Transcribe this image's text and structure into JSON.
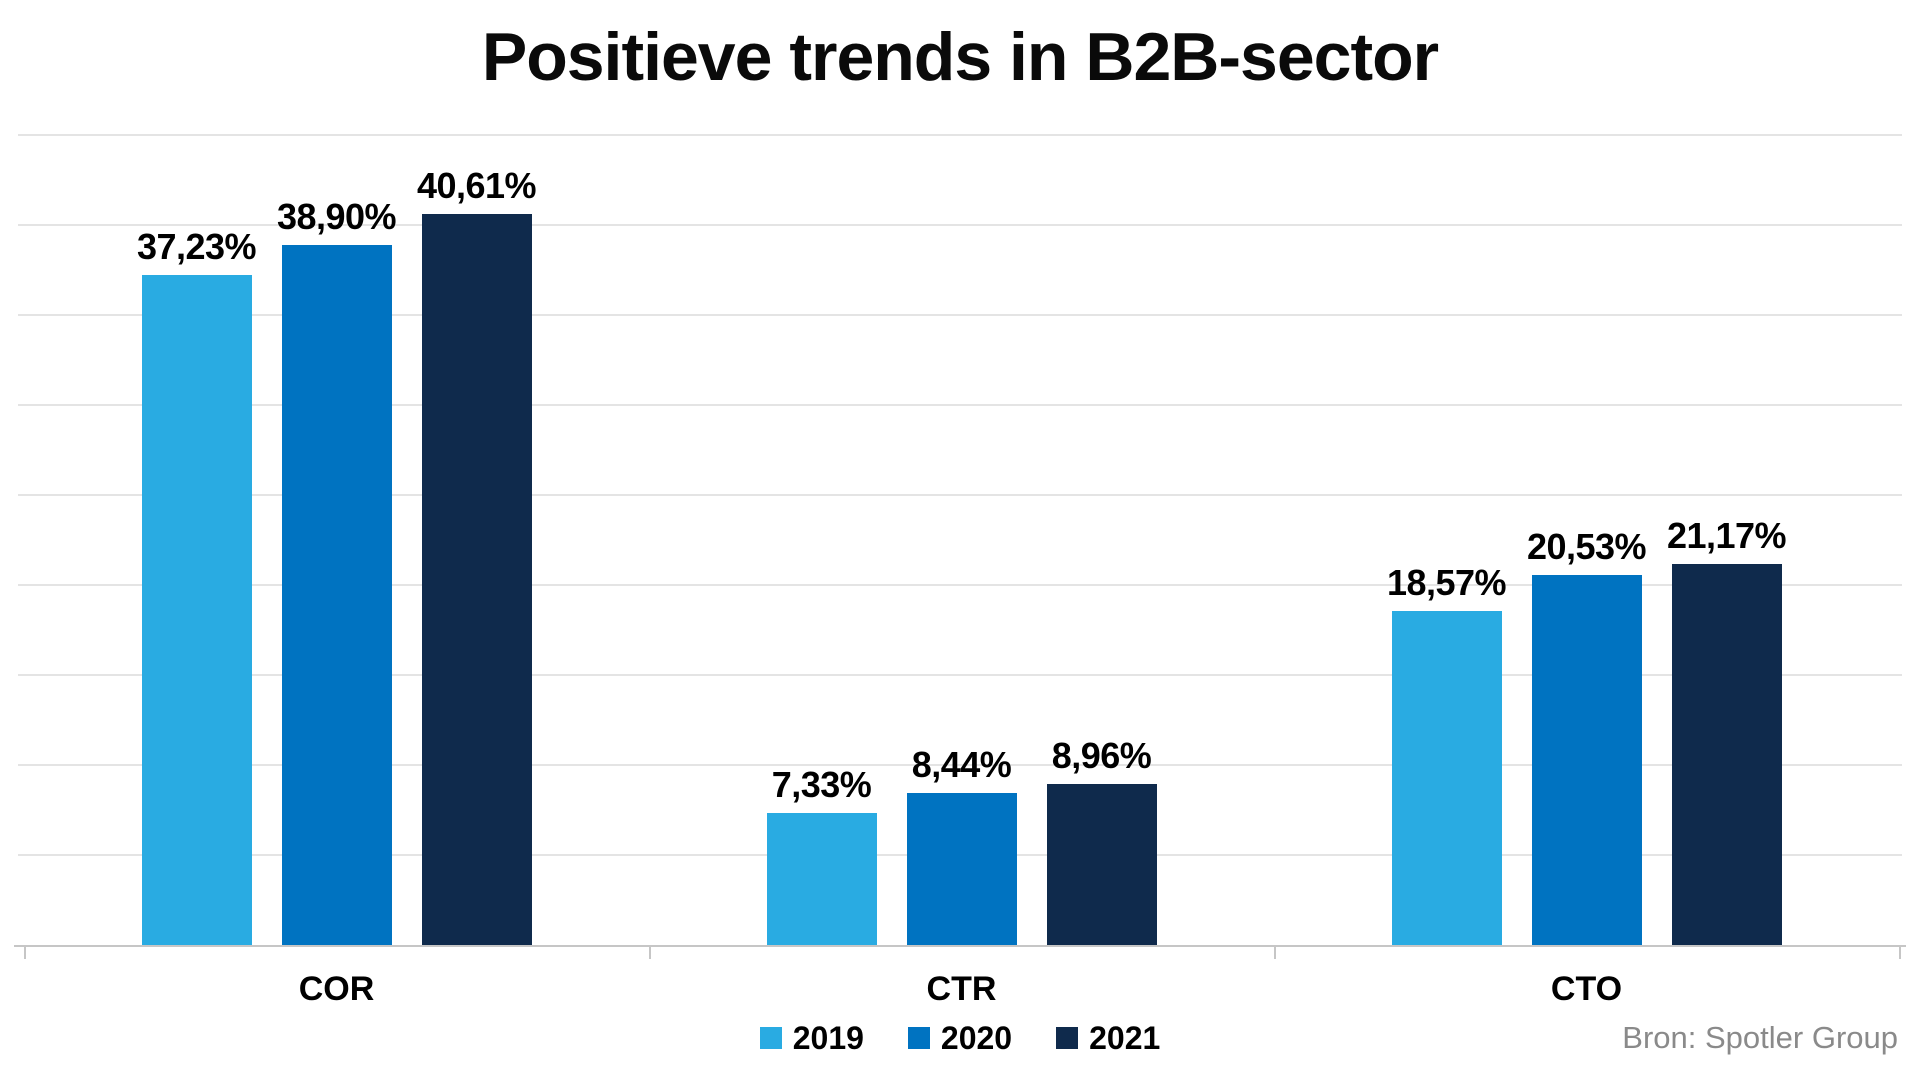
{
  "chart_data": {
    "type": "bar",
    "title": "Positieve trends in B2B-sector",
    "categories": [
      "COR",
      "CTR",
      "CTO"
    ],
    "series": [
      {
        "name": "2019",
        "color": "#29ABE2",
        "values": [
          37.23,
          7.33,
          18.57
        ],
        "labels": [
          "37,23%",
          "7,33%",
          "18,57%"
        ]
      },
      {
        "name": "2020",
        "color": "#0073C1",
        "values": [
          38.9,
          8.44,
          20.53
        ],
        "labels": [
          "38,90%",
          "8,44%",
          "20,53%"
        ]
      },
      {
        "name": "2021",
        "color": "#0F2A4C",
        "values": [
          40.61,
          8.96,
          21.17
        ],
        "labels": [
          "40,61%",
          "8,96%",
          "21,17%"
        ]
      }
    ],
    "xlabel": "",
    "ylabel": "",
    "ylim": [
      0,
      45
    ],
    "gridline_step": 5,
    "grid": true,
    "y_axis_labels_visible": false,
    "legend_position": "bottom",
    "value_label_format": "percent-decimal-comma"
  },
  "legend": {
    "items": [
      {
        "label": "2019",
        "color": "#29ABE2"
      },
      {
        "label": "2020",
        "color": "#0073C1"
      },
      {
        "label": "2021",
        "color": "#0F2A4C"
      }
    ]
  },
  "source": {
    "text": "Bron: Spotler Group"
  },
  "colors": {
    "background": "#ffffff",
    "gridline": "#e4e4e4",
    "baseline": "#c6c6c6",
    "text": "#000000",
    "source_text": "#8a8a8a"
  }
}
